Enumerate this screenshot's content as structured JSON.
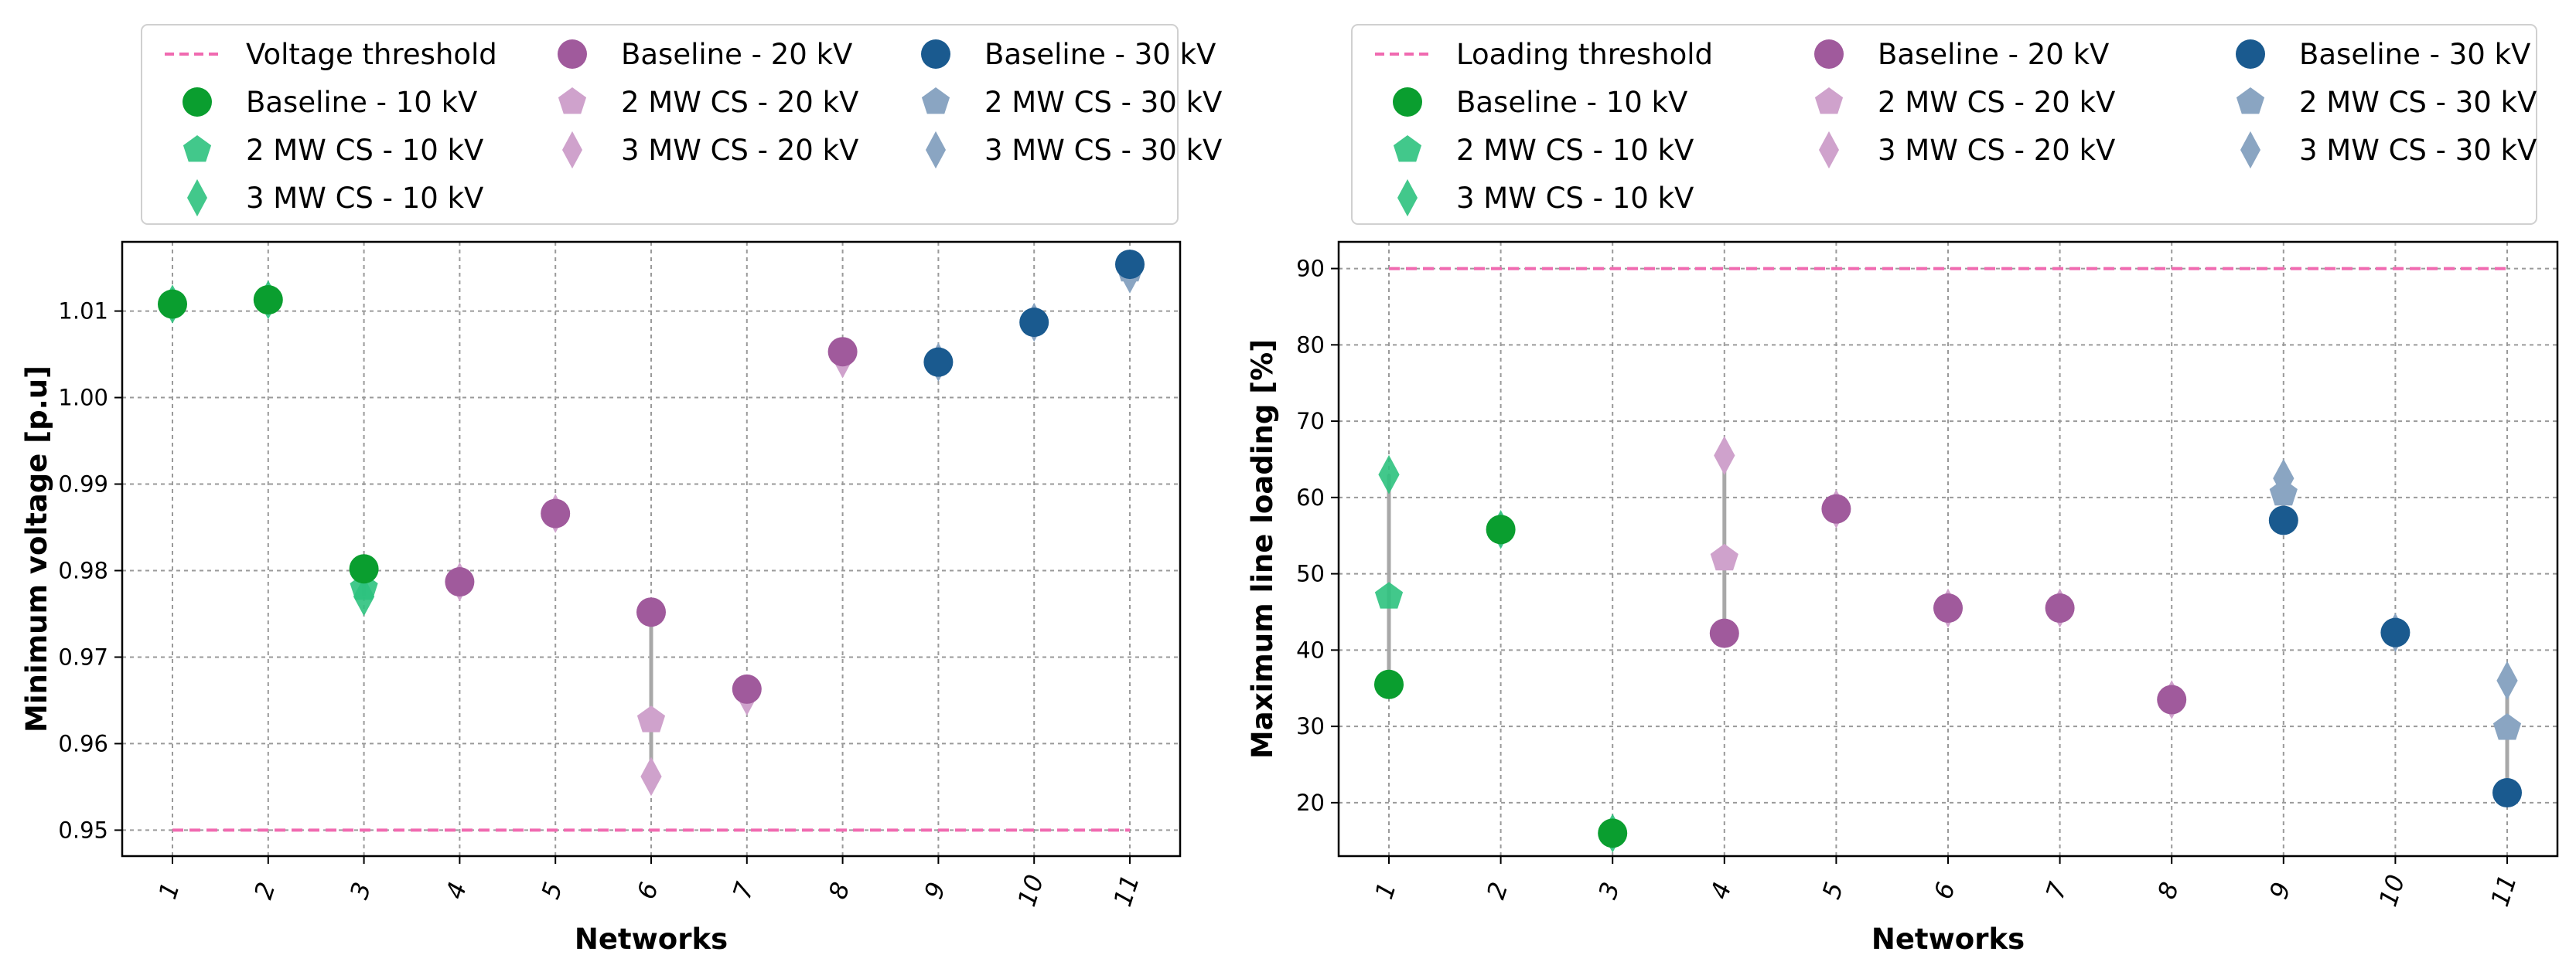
{
  "chart_data": [
    {
      "type": "scatter",
      "xlabel": "Networks",
      "ylabel": "Minimum voltage [p.u]",
      "categories": [
        "1",
        "2",
        "3",
        "4",
        "5",
        "6",
        "7",
        "8",
        "9",
        "10",
        "11"
      ],
      "ylim": [
        0.947,
        1.018
      ],
      "yticks": [
        "0.95",
        "0.96",
        "0.97",
        "0.98",
        "0.99",
        "1.00",
        "1.01"
      ],
      "grid": true,
      "legend_position": "top",
      "threshold": {
        "name": "Voltage threshold",
        "value": 0.95
      },
      "series": [
        {
          "name": "Baseline - 10 kV",
          "marker": "circle",
          "color": "#0a9e2f",
          "alpha": 1.0,
          "points": [
            [
              1,
              1.0108
            ],
            [
              2,
              1.0113
            ],
            [
              3,
              0.9802
            ]
          ]
        },
        {
          "name": "2 MW CS - 10 kV",
          "marker": "pentagon",
          "color": "#2ec27e",
          "alpha": 0.9,
          "points": [
            [
              1,
              1.0108
            ],
            [
              2,
              1.0113
            ],
            [
              3,
              0.978
            ]
          ]
        },
        {
          "name": "3 MW CS - 10 kV",
          "marker": "diamond",
          "color": "#2ec27e",
          "alpha": 0.9,
          "points": [
            [
              1,
              1.0108
            ],
            [
              2,
              1.0113
            ],
            [
              3,
              0.977
            ]
          ]
        },
        {
          "name": "Baseline - 20 kV",
          "marker": "circle",
          "color": "#a05a9c",
          "alpha": 1.0,
          "points": [
            [
              4,
              0.9787
            ],
            [
              5,
              0.9866
            ],
            [
              6,
              0.9752
            ],
            [
              7,
              0.9663
            ],
            [
              8,
              1.0053
            ]
          ]
        },
        {
          "name": "2 MW CS - 20 kV",
          "marker": "pentagon",
          "color": "#cfa2cc",
          "alpha": 1.0,
          "points": [
            [
              4,
              0.9787
            ],
            [
              5,
              0.9866
            ],
            [
              6,
              0.9627
            ],
            [
              7,
              0.9663
            ],
            [
              8,
              1.0053
            ]
          ]
        },
        {
          "name": "3 MW CS - 20 kV",
          "marker": "diamond",
          "color": "#cfa2cc",
          "alpha": 1.0,
          "points": [
            [
              4,
              0.9787
            ],
            [
              5,
              0.9866
            ],
            [
              6,
              0.9562
            ],
            [
              7,
              0.9655
            ],
            [
              8,
              1.0045
            ]
          ]
        },
        {
          "name": "Baseline - 30 kV",
          "marker": "circle",
          "color": "#1a5a8f",
          "alpha": 1.0,
          "points": [
            [
              9,
              1.0041
            ],
            [
              10,
              1.0087
            ],
            [
              11,
              1.0154
            ]
          ]
        },
        {
          "name": "2 MW CS - 30 kV",
          "marker": "pentagon",
          "color": "#8aa5c2",
          "alpha": 1.0,
          "points": [
            [
              9,
              1.0041
            ],
            [
              10,
              1.0087
            ],
            [
              11,
              1.0148
            ]
          ]
        },
        {
          "name": "3 MW CS - 30 kV",
          "marker": "diamond",
          "color": "#8aa5c2",
          "alpha": 1.0,
          "points": [
            [
              9,
              1.0041
            ],
            [
              10,
              1.0087
            ],
            [
              11,
              1.0143
            ]
          ]
        }
      ]
    },
    {
      "type": "scatter",
      "xlabel": "Networks",
      "ylabel": "Maximum line loading [%]",
      "categories": [
        "1",
        "2",
        "3",
        "4",
        "5",
        "6",
        "7",
        "8",
        "9",
        "10",
        "11"
      ],
      "ylim": [
        13,
        93.5
      ],
      "yticks": [
        "20",
        "30",
        "40",
        "50",
        "60",
        "70",
        "80",
        "90"
      ],
      "grid": true,
      "legend_position": "top",
      "threshold": {
        "name": "Loading threshold",
        "value": 90
      },
      "series": [
        {
          "name": "Baseline - 10 kV",
          "marker": "circle",
          "color": "#0a9e2f",
          "alpha": 1.0,
          "points": [
            [
              1,
              35.5
            ],
            [
              2,
              55.8
            ],
            [
              3,
              16.0
            ]
          ]
        },
        {
          "name": "2 MW CS - 10 kV",
          "marker": "pentagon",
          "color": "#2ec27e",
          "alpha": 0.9,
          "points": [
            [
              1,
              47.0
            ],
            [
              2,
              55.8
            ],
            [
              3,
              16.0
            ]
          ]
        },
        {
          "name": "3 MW CS - 10 kV",
          "marker": "diamond",
          "color": "#2ec27e",
          "alpha": 0.9,
          "points": [
            [
              1,
              63.0
            ],
            [
              2,
              55.8
            ],
            [
              3,
              16.0
            ]
          ]
        },
        {
          "name": "Baseline - 20 kV",
          "marker": "circle",
          "color": "#a05a9c",
          "alpha": 1.0,
          "points": [
            [
              4,
              42.2
            ],
            [
              5,
              58.5
            ],
            [
              6,
              45.5
            ],
            [
              7,
              45.5
            ],
            [
              8,
              33.5
            ]
          ]
        },
        {
          "name": "2 MW CS - 20 kV",
          "marker": "pentagon",
          "color": "#cfa2cc",
          "alpha": 1.0,
          "points": [
            [
              4,
              52.0
            ],
            [
              5,
              58.5
            ],
            [
              6,
              45.5
            ],
            [
              7,
              45.5
            ],
            [
              8,
              33.5
            ]
          ]
        },
        {
          "name": "3 MW CS - 20 kV",
          "marker": "diamond",
          "color": "#cfa2cc",
          "alpha": 1.0,
          "points": [
            [
              4,
              65.5
            ],
            [
              5,
              58.5
            ],
            [
              6,
              45.5
            ],
            [
              7,
              45.5
            ],
            [
              8,
              33.5
            ]
          ]
        },
        {
          "name": "Baseline - 30 kV",
          "marker": "circle",
          "color": "#1a5a8f",
          "alpha": 1.0,
          "points": [
            [
              9,
              57.0
            ],
            [
              10,
              42.3
            ],
            [
              11,
              21.3
            ]
          ]
        },
        {
          "name": "2 MW CS - 30 kV",
          "marker": "pentagon",
          "color": "#8aa5c2",
          "alpha": 1.0,
          "points": [
            [
              9,
              60.5
            ],
            [
              10,
              42.3
            ],
            [
              11,
              29.8
            ]
          ]
        },
        {
          "name": "3 MW CS - 30 kV",
          "marker": "diamond",
          "color": "#8aa5c2",
          "alpha": 1.0,
          "points": [
            [
              9,
              62.5
            ],
            [
              10,
              42.3
            ],
            [
              11,
              36.0
            ]
          ]
        }
      ]
    }
  ]
}
